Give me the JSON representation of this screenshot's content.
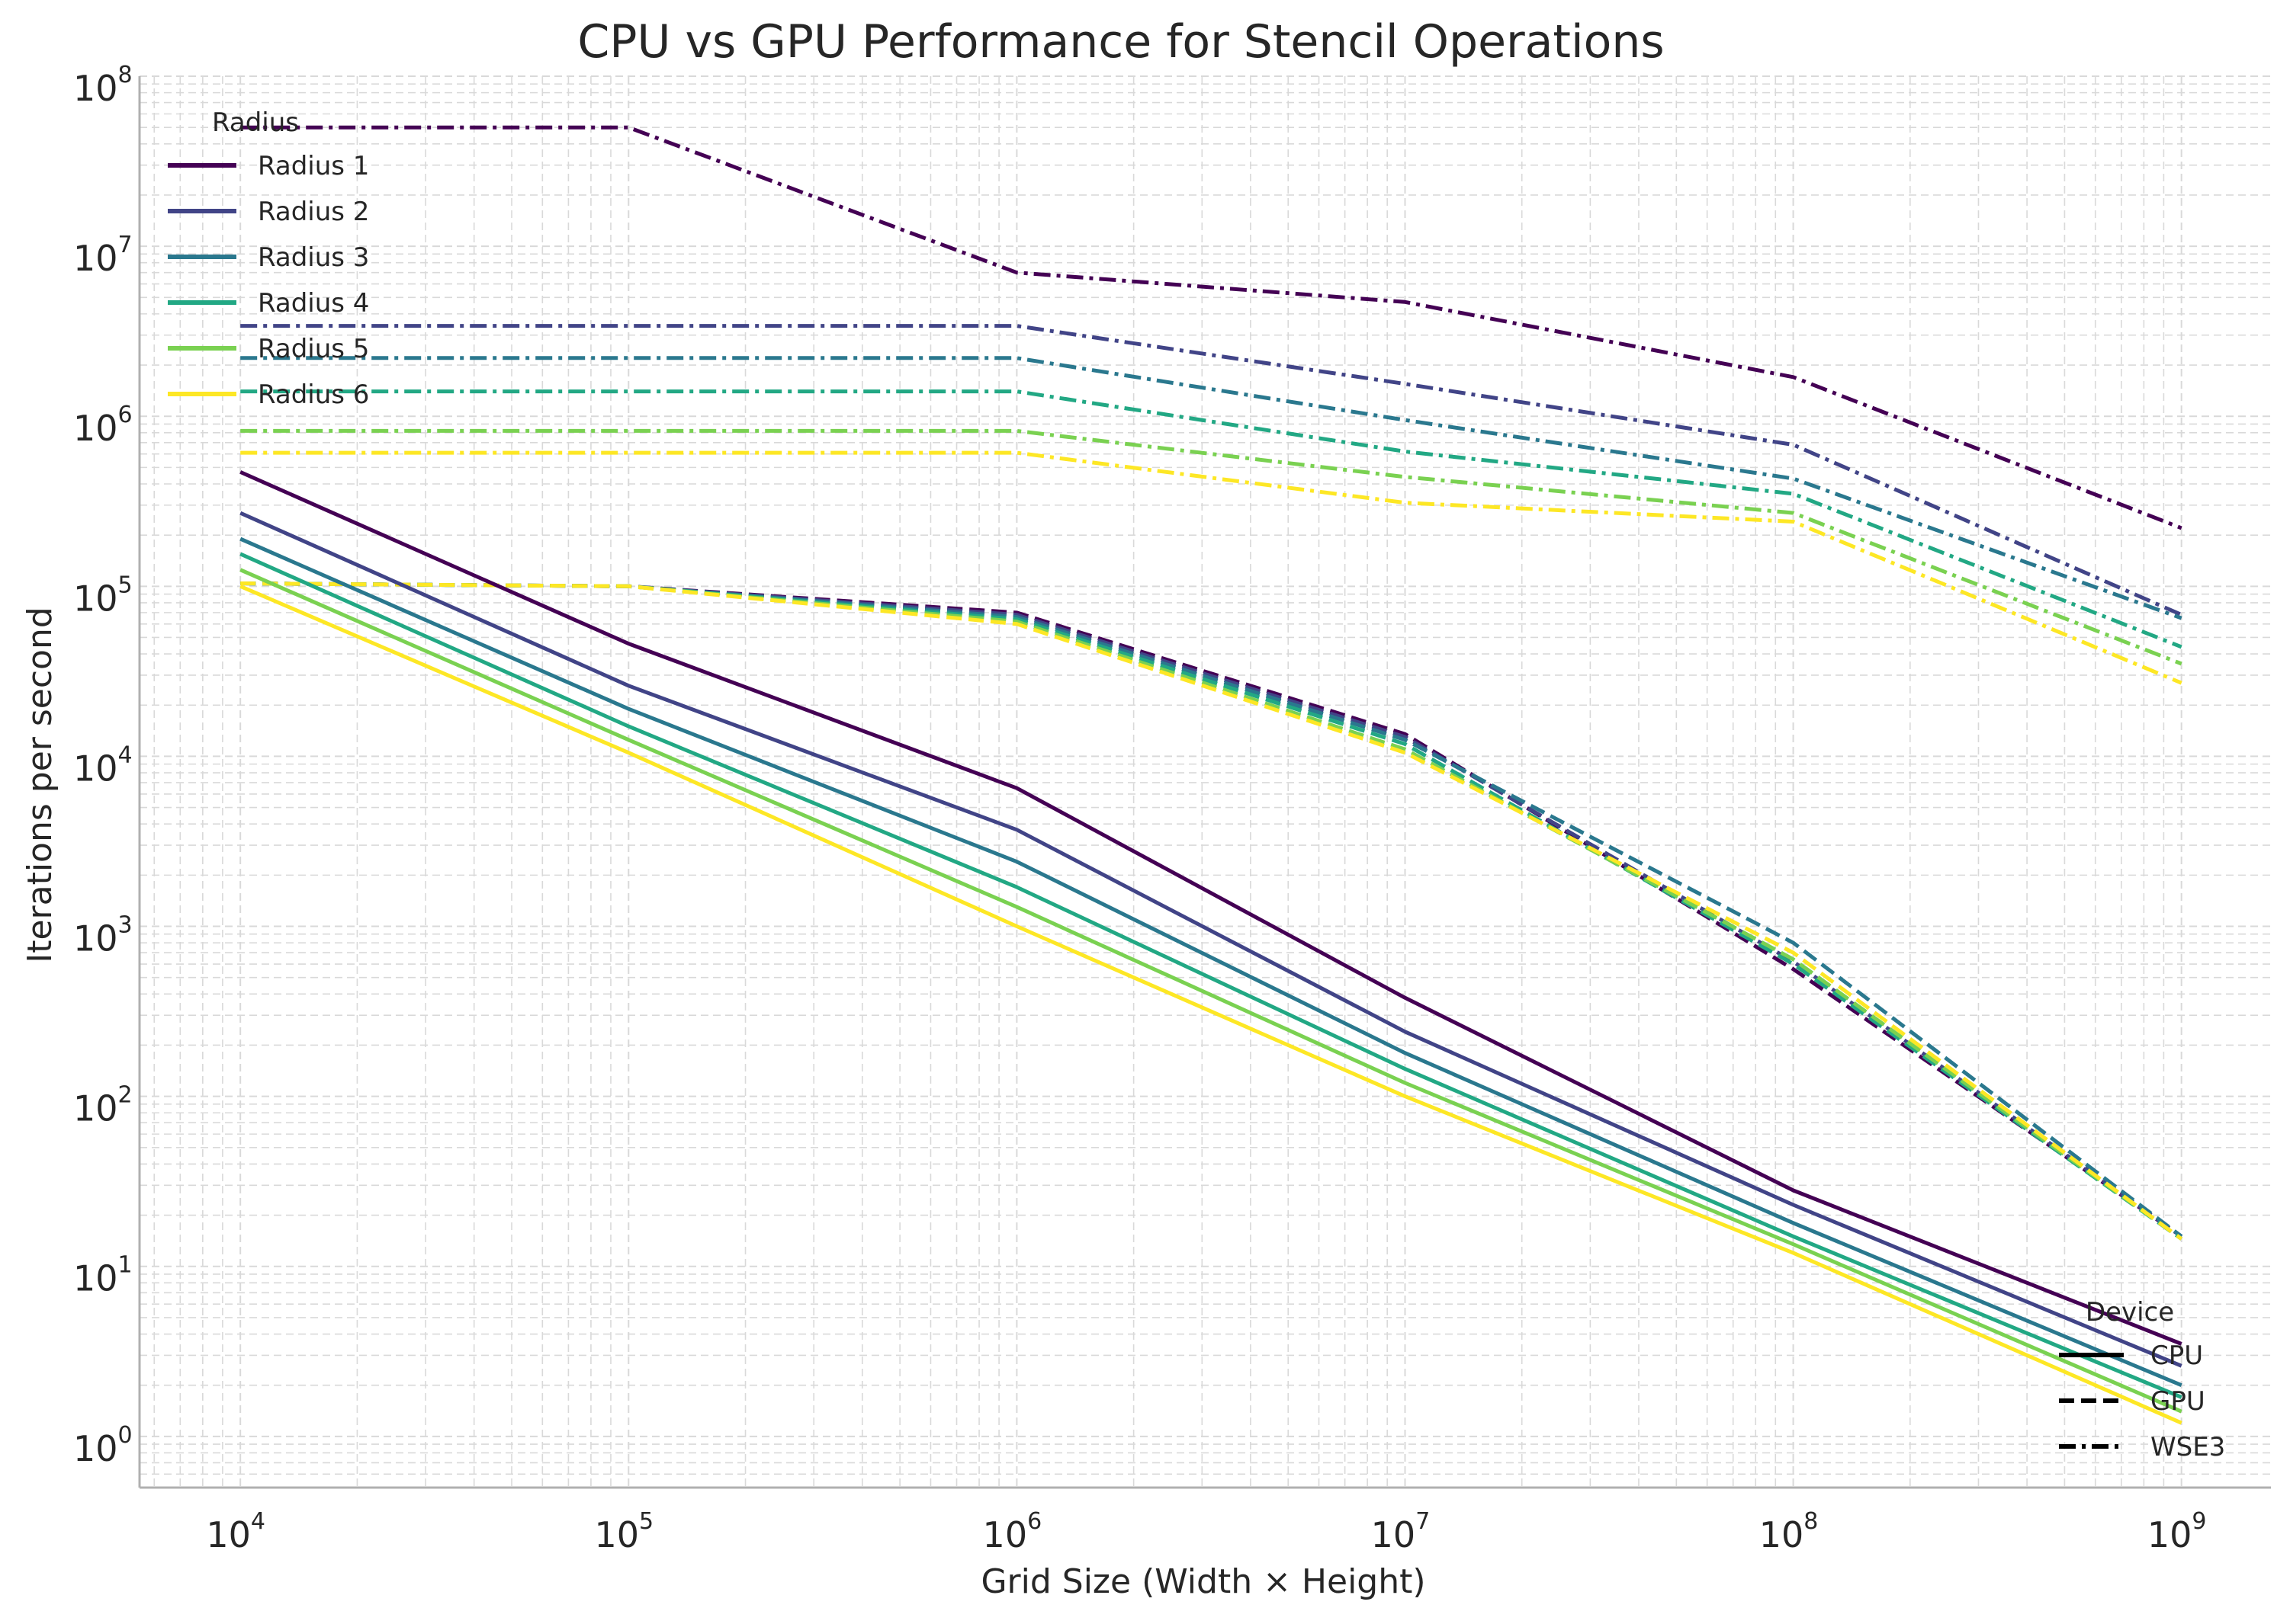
{
  "chart_data": {
    "type": "line",
    "title": "CPU vs GPU Performance for Stencil Operations",
    "xlabel": "Grid Size (Width × Height)",
    "ylabel": "Iterations per second",
    "xscale": "log",
    "yscale": "log",
    "xlim": [
      5500,
      1700000000
    ],
    "ylim": [
      0.5,
      100000000
    ],
    "x": [
      10000,
      100000,
      1000000,
      10000000,
      100000000,
      1000000000
    ],
    "x_tick_values": [
      10000,
      100000,
      1000000,
      10000000,
      100000000,
      1000000000
    ],
    "x_tick_exponents": [
      "4",
      "5",
      "6",
      "7",
      "8",
      "9"
    ],
    "y_tick_values": [
      1,
      10,
      100,
      1000,
      10000,
      100000,
      1000000,
      10000000,
      100000000
    ],
    "y_tick_exponents": [
      "0",
      "1",
      "2",
      "3",
      "4",
      "5",
      "6",
      "7",
      "8"
    ],
    "tick_base": "10",
    "grid": true,
    "radius_legend": {
      "title": "Radius",
      "placement": "top-left",
      "entries": [
        {
          "label": "Radius 1",
          "color": "#440154"
        },
        {
          "label": "Radius 2",
          "color": "#414487"
        },
        {
          "label": "Radius 3",
          "color": "#2a788e"
        },
        {
          "label": "Radius 4",
          "color": "#22a884"
        },
        {
          "label": "Radius 5",
          "color": "#7ad151"
        },
        {
          "label": "Radius 6",
          "color": "#fde725"
        }
      ]
    },
    "device_legend": {
      "title": "Device",
      "placement": "bottom-right",
      "entries": [
        {
          "label": "CPU",
          "dash": "solid"
        },
        {
          "label": "GPU",
          "dash": "dashed"
        },
        {
          "label": "WSE3",
          "dash": "dashdot"
        }
      ]
    },
    "series": [
      {
        "radius": 1,
        "device": "CPU",
        "values": [
          470000,
          46000,
          6500,
          380,
          28,
          3.5
        ]
      },
      {
        "radius": 2,
        "device": "CPU",
        "values": [
          270000,
          26000,
          3700,
          240,
          23,
          2.6
        ]
      },
      {
        "radius": 3,
        "device": "CPU",
        "values": [
          190000,
          19000,
          2400,
          180,
          18,
          2.0
        ]
      },
      {
        "radius": 4,
        "device": "CPU",
        "values": [
          155000,
          15000,
          1700,
          145,
          15,
          1.7
        ]
      },
      {
        "radius": 5,
        "device": "CPU",
        "values": [
          125000,
          12500,
          1300,
          120,
          13.5,
          1.4
        ]
      },
      {
        "radius": 6,
        "device": "CPU",
        "values": [
          100000,
          10500,
          1000,
          100,
          12,
          1.2
        ]
      },
      {
        "radius": 1,
        "device": "GPU",
        "values": [
          104000,
          100000,
          70000,
          13500,
          560,
          15
        ]
      },
      {
        "radius": 2,
        "device": "GPU",
        "values": [
          104000,
          100000,
          68000,
          13000,
          620,
          15
        ]
      },
      {
        "radius": 3,
        "device": "GPU",
        "values": [
          104000,
          100000,
          66000,
          12500,
          800,
          15
        ]
      },
      {
        "radius": 4,
        "device": "GPU",
        "values": [
          104000,
          100000,
          64000,
          11800,
          600,
          14.5
        ]
      },
      {
        "radius": 5,
        "device": "GPU",
        "values": [
          104000,
          100000,
          62000,
          11000,
          640,
          14.5
        ]
      },
      {
        "radius": 6,
        "device": "GPU",
        "values": [
          104000,
          100000,
          60000,
          10500,
          700,
          14.5
        ]
      },
      {
        "radius": 1,
        "device": "WSE3",
        "values": [
          50000000,
          50000000,
          7000000,
          4700000,
          1700000,
          220000
        ]
      },
      {
        "radius": 2,
        "device": "WSE3",
        "values": [
          3400000,
          3400000,
          3400000,
          1550000,
          680000,
          68000
        ]
      },
      {
        "radius": 3,
        "device": "WSE3",
        "values": [
          2200000,
          2200000,
          2200000,
          950000,
          430000,
          65000
        ]
      },
      {
        "radius": 4,
        "device": "WSE3",
        "values": [
          1400000,
          1400000,
          1400000,
          620000,
          350000,
          44000
        ]
      },
      {
        "radius": 5,
        "device": "WSE3",
        "values": [
          820000,
          820000,
          820000,
          440000,
          270000,
          35000
        ]
      },
      {
        "radius": 6,
        "device": "WSE3",
        "values": [
          610000,
          610000,
          610000,
          310000,
          240000,
          27000
        ]
      }
    ]
  }
}
